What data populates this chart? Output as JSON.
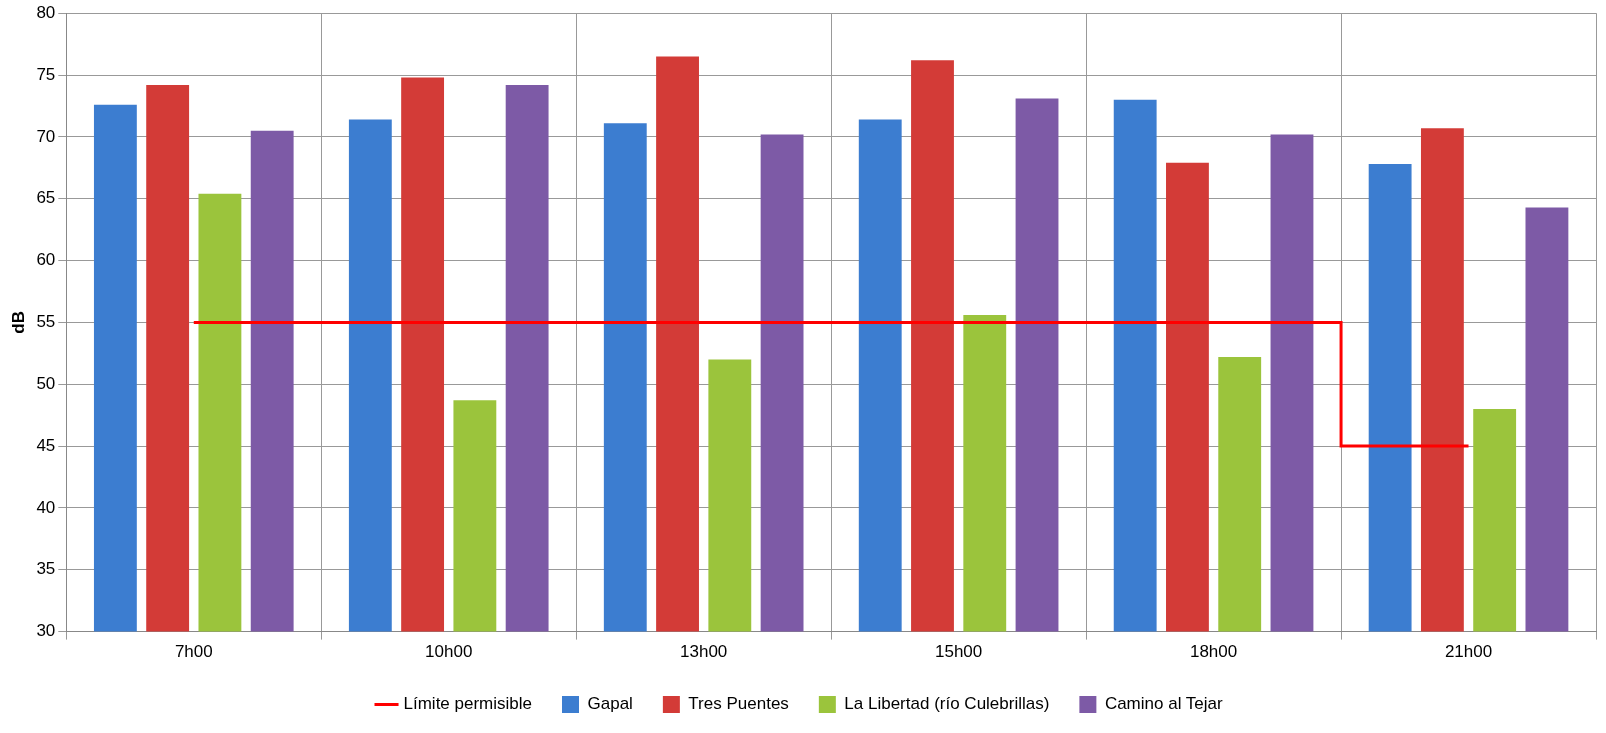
{
  "chart_data": {
    "type": "bar",
    "ylabel": "dB",
    "categories": [
      "7h00",
      "10h00",
      "13h00",
      "15h00",
      "18h00",
      "21h00"
    ],
    "ylim": [
      30,
      80
    ],
    "yticks": [
      30,
      35,
      40,
      45,
      50,
      55,
      60,
      65,
      70,
      75,
      80
    ],
    "grid": true,
    "legend": "bottom",
    "series": [
      {
        "name": "Gapal",
        "color": "#3c7dd0",
        "values": [
          72.6,
          71.4,
          71.1,
          71.4,
          73.0,
          67.8
        ]
      },
      {
        "name": "Tres Puentes",
        "color": "#d33b37",
        "values": [
          74.2,
          74.8,
          76.5,
          76.2,
          67.9,
          70.7
        ]
      },
      {
        "name": "La Libertad (río Culebrillas)",
        "color": "#9bc43c",
        "values": [
          65.4,
          48.7,
          52.0,
          55.6,
          52.2,
          48.0
        ]
      },
      {
        "name": "Camino al Tejar",
        "color": "#7d5aa6",
        "values": [
          70.5,
          74.2,
          70.2,
          73.1,
          70.2,
          64.3
        ]
      },
      {
        "name": "Límite permisible",
        "type": "step",
        "color": "#ff0000",
        "marker": "none",
        "values": [
          55,
          55,
          55,
          55,
          55,
          45
        ]
      }
    ]
  }
}
